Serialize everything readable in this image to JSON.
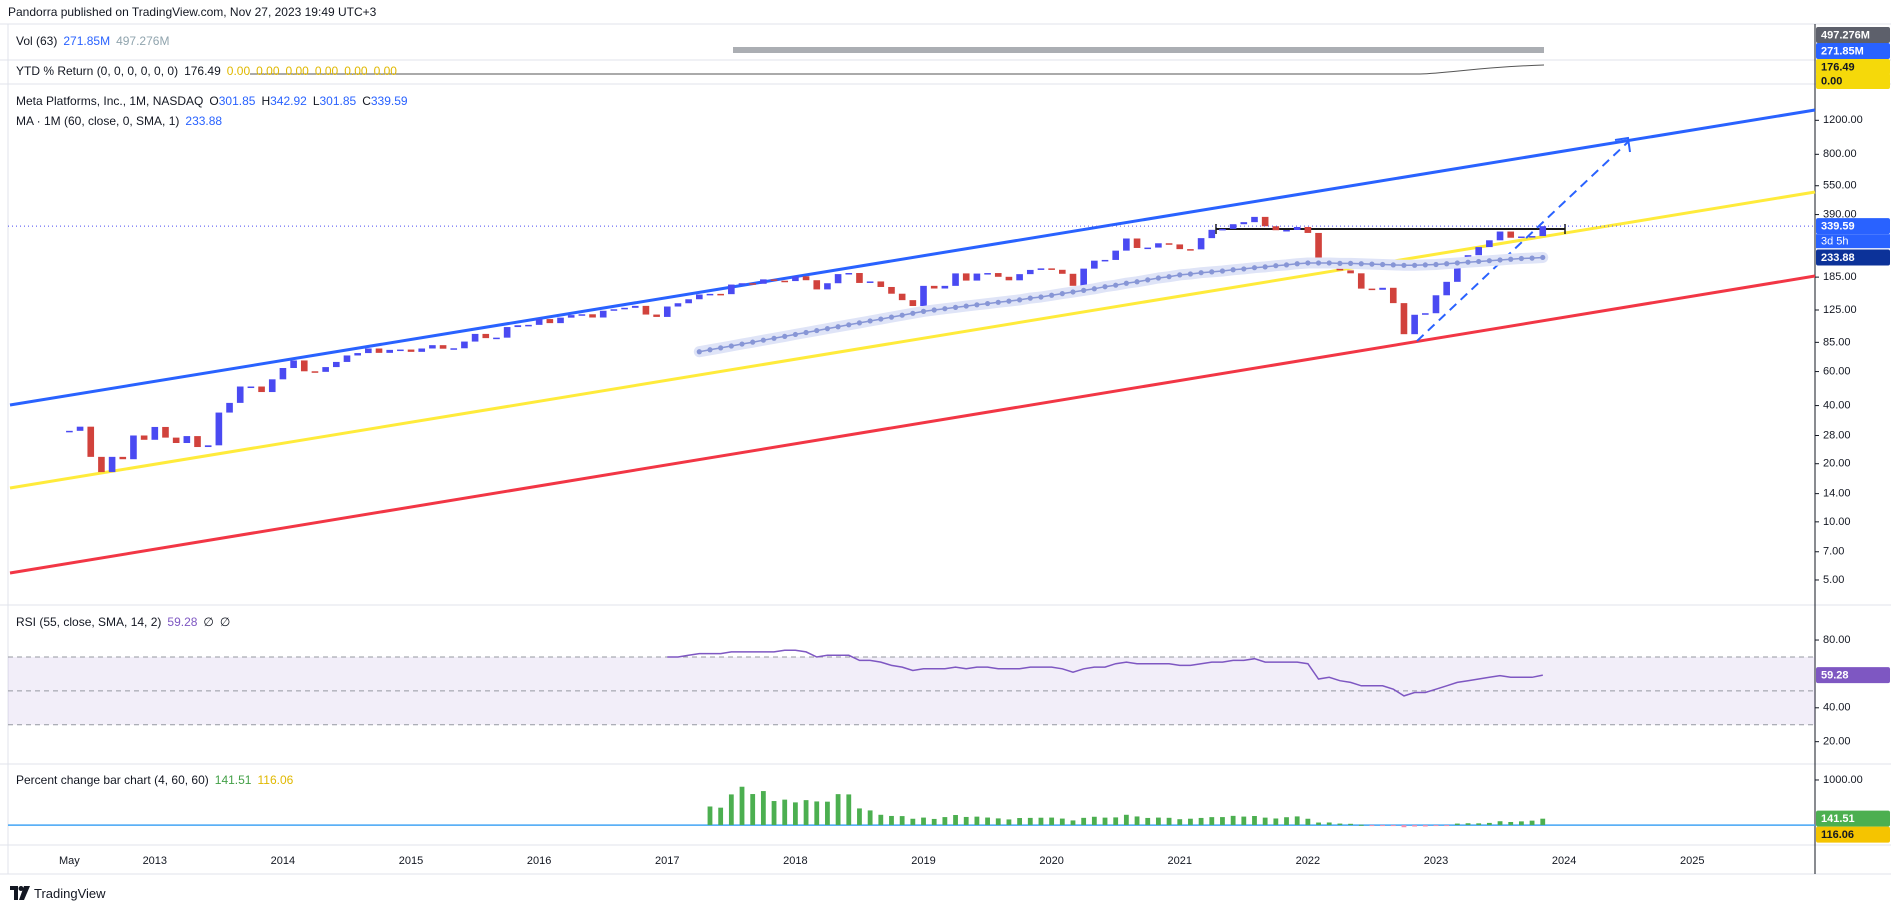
{
  "header": "Pandorra published on TradingView.com, Nov 27, 2023 19:49 UTC+3",
  "footer": "TradingView",
  "indicators": {
    "volume": {
      "title": "Vol (63)",
      "values": [
        "271.85M",
        "497.276M"
      ]
    },
    "ytd": {
      "title": "YTD % Return (0, 0, 0, 0, 0, 0)",
      "values": [
        "176.49",
        "0.00",
        "0.00",
        "0.00",
        "0.00",
        "0.00",
        "0.00"
      ]
    }
  },
  "chart_data": [
    {
      "type": "candle",
      "log": true,
      "grid": false,
      "ylim": [
        3.8,
        1850
      ],
      "yticks": [
        {
          "value": 5,
          "label": "5.00"
        },
        {
          "value": 7,
          "label": "7.00"
        },
        {
          "value": 10,
          "label": "10.00"
        },
        {
          "value": 14,
          "label": "14.00"
        },
        {
          "value": 20,
          "label": "20.00"
        },
        {
          "value": 28,
          "label": "28.00"
        },
        {
          "value": 40,
          "label": "40.00"
        },
        {
          "value": 60,
          "label": "60.00"
        },
        {
          "value": 85,
          "label": "85.00"
        },
        {
          "value": 125,
          "label": "125.00"
        },
        {
          "value": 185,
          "label": "185.00"
        },
        {
          "value": 390,
          "label": "390.00"
        },
        {
          "value": 550,
          "label": "550.00"
        },
        {
          "value": 800,
          "label": "800.00"
        },
        {
          "value": 1200,
          "label": "1200.00"
        }
      ],
      "ohlc_keys": [
        "O",
        "H",
        "L",
        "C"
      ],
      "high": "342.92",
      "low": "301.85",
      "countdown": "3d 5h",
      "categories": [
        null,
        null,
        null,
        null,
        null,
        null,
        "May",
        null,
        null,
        null,
        null,
        null,
        null,
        null,
        "2013",
        null,
        null,
        null,
        null,
        null,
        null,
        null,
        null,
        null,
        null,
        null,
        "2014",
        null,
        null,
        null,
        null,
        null,
        null,
        null,
        null,
        null,
        null,
        null,
        "2015",
        null,
        null,
        null,
        null,
        null,
        null,
        null,
        null,
        null,
        null,
        null,
        "2016",
        null,
        null,
        null,
        null,
        null,
        null,
        null,
        null,
        null,
        null,
        null,
        "2017",
        null,
        null,
        null,
        null,
        null,
        null,
        null,
        null,
        null,
        null,
        null,
        "2018",
        null,
        null,
        null,
        null,
        null,
        null,
        null,
        null,
        null,
        null,
        null,
        "2019",
        null,
        null,
        null,
        null,
        null,
        null,
        null,
        null,
        null,
        null,
        null,
        "2020",
        null,
        null,
        null,
        null,
        null,
        null,
        null,
        null,
        null,
        null,
        null,
        "2021",
        null,
        null,
        null,
        null,
        null,
        null,
        null,
        null,
        null,
        null,
        null,
        "2022",
        null,
        null,
        null,
        null,
        null,
        null,
        null,
        null,
        null,
        null,
        null,
        "2023",
        null,
        null,
        null,
        null,
        null,
        null,
        null,
        null,
        null,
        null,
        null,
        "2024",
        null,
        null,
        null,
        null,
        null,
        null,
        null,
        null,
        null,
        null,
        null,
        "2025",
        null,
        null,
        null,
        null,
        null,
        null,
        null,
        null,
        null,
        null,
        null
      ],
      "series": [
        {
          "name": "Meta Platforms, Inc., 1M, NASDAQ",
          "up_color": "#4a4af2",
          "down_color": "#d1423c",
          "values": [
            null,
            null,
            null,
            null,
            null,
            null,
            29.6,
            31.1,
            21.7,
            18.1,
            21.7,
            21.1,
            28.0,
            26.6,
            31.0,
            27.3,
            25.6,
            27.8,
            24.4,
            24.9,
            36.8,
            41.3,
            50.2,
            50.2,
            47.0,
            54.7,
            62.6,
            68.5,
            60.2,
            59.8,
            63.3,
            67.3,
            72.7,
            74.8,
            79.0,
            75.0,
            77.7,
            78.0,
            75.9,
            79.0,
            82.2,
            78.8,
            79.2,
            85.8,
            94.0,
            89.4,
            89.9,
            102.0,
            104.2,
            104.7,
            112.2,
            106.9,
            114.1,
            117.6,
            118.8,
            114.3,
            123.9,
            126.1,
            128.3,
            131.3,
            118.4,
            115.1,
            130.3,
            135.5,
            142.1,
            150.3,
            151.5,
            151.0,
            169.3,
            172.0,
            170.9,
            180.1,
            177.2,
            176.5,
            186.9,
            178.3,
            159.8,
            172.0,
            191.8,
            194.3,
            172.6,
            175.7,
            164.5,
            151.8,
            140.6,
            131.1,
            166.7,
            161.5,
            166.7,
            193.4,
            177.5,
            193.0,
            194.2,
            185.7,
            178.1,
            191.7,
            201.6,
            205.3,
            201.9,
            192.5,
            166.8,
            204.7,
            225.1,
            227.1,
            253.7,
            293.2,
            261.9,
            263.1,
            277.0,
            273.2,
            258.3,
            257.6,
            294.5,
            325.1,
            328.7,
            347.7,
            356.3,
            379.4,
            339.4,
            323.6,
            324.5,
            336.4,
            313.3,
            211.0,
            222.4,
            200.5,
            193.6,
            161.3,
            159.1,
            162.9,
            135.7,
            93.7,
            118.1,
            120.3,
            149.0,
            174.9,
            211.9,
            240.3,
            264.7,
            287.0,
            318.6,
            295.9,
            300.2,
            301.85,
            339.59,
            null,
            null,
            null,
            null,
            null,
            null,
            null,
            null,
            null,
            null,
            null,
            null,
            null,
            null,
            null,
            null,
            null,
            null,
            null,
            null,
            null,
            null,
            null,
            null,
            null
          ]
        },
        {
          "name": "MA · 1M (60, close, 0, SMA, 1)",
          "color": "#8796d6",
          "style": "dots",
          "values": [
            null,
            null,
            null,
            null,
            null,
            null,
            null,
            null,
            null,
            null,
            null,
            null,
            null,
            null,
            null,
            null,
            null,
            null,
            null,
            null,
            null,
            null,
            null,
            null,
            null,
            null,
            null,
            null,
            null,
            null,
            null,
            null,
            null,
            null,
            null,
            null,
            null,
            null,
            null,
            null,
            null,
            null,
            null,
            null,
            null,
            null,
            null,
            null,
            null,
            null,
            null,
            null,
            null,
            null,
            null,
            null,
            null,
            null,
            null,
            null,
            null,
            null,
            null,
            null,
            null,
            76,
            77.8,
            79.6,
            81.4,
            83.3,
            85.2,
            87.2,
            89.2,
            91.3,
            93.4,
            95.6,
            97.8,
            100.1,
            102.4,
            104.8,
            107.2,
            109.7,
            112.2,
            114.8,
            117.5,
            120.2,
            123,
            125,
            127,
            129,
            131,
            133,
            135,
            137,
            139,
            141,
            144,
            146,
            149,
            152,
            155,
            158,
            161,
            165,
            168,
            172,
            175,
            179,
            183,
            186,
            190,
            192,
            195,
            197,
            199,
            202,
            204,
            207,
            209,
            212,
            214,
            217,
            219,
            219,
            219,
            218,
            218,
            217,
            216,
            215,
            214,
            213,
            213,
            214,
            215,
            217,
            219,
            221,
            223,
            225,
            227,
            229,
            231,
            232,
            233.88,
            null,
            null,
            null,
            null,
            null,
            null,
            null,
            null,
            null,
            null,
            null,
            null,
            null,
            null,
            null,
            null,
            null,
            null,
            null,
            null,
            null,
            null,
            null,
            null,
            null
          ]
        }
      ]
    },
    {
      "type": "line",
      "title": "RSI (55, close, SMA, 14, 2)",
      "extras": [
        "∅",
        "∅"
      ],
      "ylim": [
        8,
        99.5
      ],
      "yticks": [
        {
          "value": 80,
          "label": "80.00"
        },
        {
          "value": 40,
          "label": "40.00"
        },
        {
          "value": 20,
          "label": "20.00"
        }
      ],
      "band": [
        30,
        70
      ],
      "midline": 50,
      "band_color": "#7e57c2",
      "series": [
        {
          "color": "#7e57c2",
          "values": [
            null,
            null,
            null,
            null,
            null,
            null,
            null,
            null,
            null,
            null,
            null,
            null,
            null,
            null,
            null,
            null,
            null,
            null,
            null,
            null,
            null,
            null,
            null,
            null,
            null,
            null,
            null,
            null,
            null,
            null,
            null,
            null,
            null,
            null,
            null,
            null,
            null,
            null,
            null,
            null,
            null,
            null,
            null,
            null,
            null,
            null,
            null,
            null,
            null,
            null,
            null,
            null,
            null,
            null,
            null,
            null,
            null,
            null,
            null,
            null,
            null,
            null,
            70,
            70,
            71,
            72,
            72,
            72,
            73,
            73,
            73,
            73,
            73,
            74,
            74,
            73,
            70,
            71,
            71,
            71,
            68,
            68,
            67,
            65,
            64,
            62,
            63,
            63,
            63,
            64,
            63,
            64,
            64,
            63,
            63,
            63,
            64,
            64,
            64,
            63,
            61,
            63,
            64,
            64,
            66,
            67,
            66,
            66,
            66,
            66,
            65,
            65,
            66,
            67,
            67,
            68,
            68,
            69,
            67,
            67,
            67,
            67,
            66,
            57,
            58,
            56,
            55,
            53,
            53,
            53,
            51,
            47,
            49,
            49,
            51,
            53,
            55,
            56,
            57,
            58,
            59,
            58,
            58,
            58,
            59.28,
            null,
            null,
            null,
            null,
            null,
            null,
            null,
            null,
            null,
            null,
            null,
            null,
            null,
            null,
            null,
            null,
            null,
            null,
            null,
            null,
            null,
            null,
            null,
            null,
            null
          ]
        }
      ]
    },
    {
      "type": "bar",
      "title": "Percent change bar chart (4, 60, 60)",
      "ma_value": "116.06",
      "ma_color": "#f5c400",
      "baseline_color": "#42a5f5",
      "ylim": [
        -420,
        1310
      ],
      "yticks": [
        {
          "value": 1000,
          "label": "1000.00"
        }
      ],
      "series": [
        {
          "color": "#4caf50",
          "negative_color": "#f48fb1",
          "values": [
            null,
            null,
            null,
            null,
            null,
            null,
            null,
            null,
            null,
            null,
            null,
            null,
            null,
            null,
            null,
            null,
            null,
            null,
            null,
            null,
            null,
            null,
            null,
            null,
            null,
            null,
            null,
            null,
            null,
            null,
            null,
            null,
            null,
            null,
            null,
            null,
            null,
            null,
            null,
            null,
            null,
            null,
            null,
            null,
            null,
            null,
            null,
            null,
            null,
            null,
            null,
            null,
            null,
            null,
            null,
            null,
            null,
            null,
            null,
            null,
            null,
            null,
            null,
            null,
            null,
            null,
            412,
            386,
            680,
            850,
            688,
            754,
            533,
            564,
            503,
            553,
            524,
            519,
            686,
            680,
            369,
            325,
            228,
            202,
            199,
            140,
            166,
            136,
            177,
            223,
            180,
            187,
            167,
            148,
            125,
            156,
            159,
            163,
            166,
            144,
            103,
            160,
            184,
            165,
            170,
            228,
            191,
            158,
            166,
            161,
            130,
            141,
            158,
            176,
            177,
            204,
            188,
            201,
            165,
            146,
            174,
            192,
            140,
            56,
            57,
            33,
            28,
            7,
            -6,
            -5,
            -21,
            -48,
            -33,
            -32,
            -20,
            -2,
            33,
            40,
            38,
            48,
            85,
            68,
            82,
            98,
            141.51,
            null,
            null,
            null,
            null,
            null,
            null,
            null,
            null,
            null,
            null,
            null,
            null,
            null,
            null,
            null,
            null,
            null,
            null,
            null,
            null,
            null,
            null,
            null,
            null,
            null
          ]
        }
      ]
    }
  ]
}
